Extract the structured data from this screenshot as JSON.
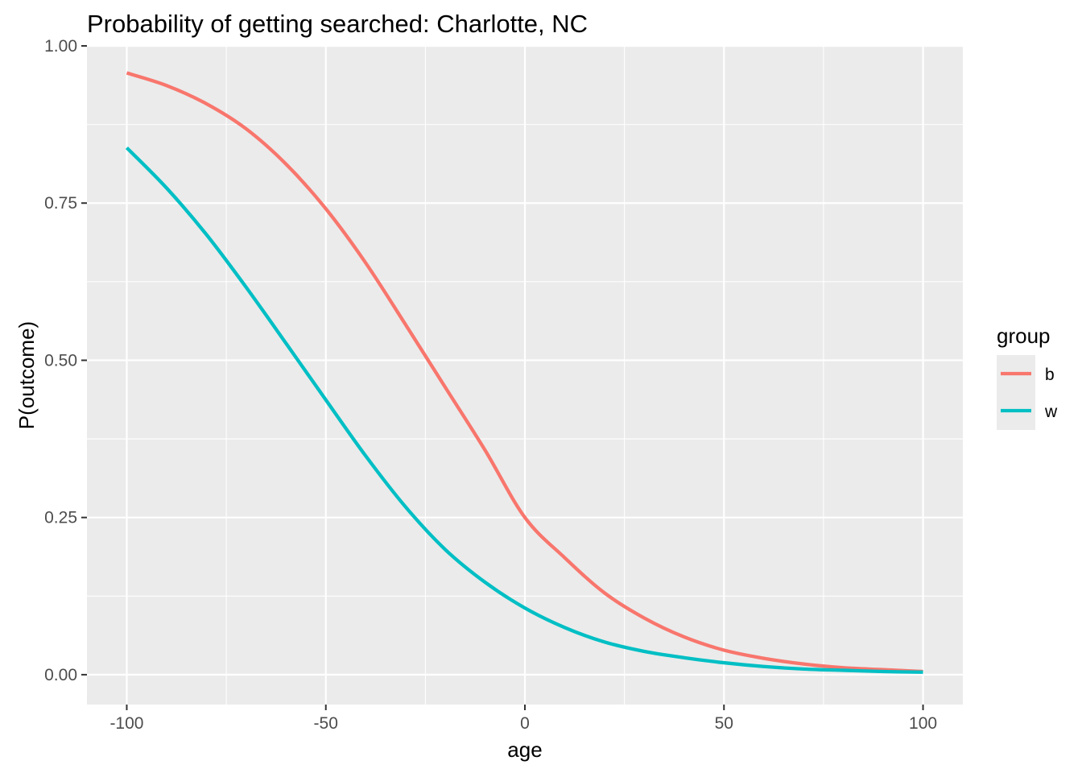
{
  "chart_data": {
    "type": "line",
    "title": "Probability of getting searched: Charlotte, NC",
    "xlabel": "age",
    "ylabel": "P(outcome)",
    "xlim": [
      -110,
      110
    ],
    "ylim": [
      -0.0475,
      1.0
    ],
    "x_ticks": [
      -100,
      -50,
      0,
      50,
      100
    ],
    "x_tick_labels": [
      "-100",
      "-50",
      "0",
      "50",
      "100"
    ],
    "y_ticks": [
      0,
      0.25,
      0.5,
      0.75,
      1.0
    ],
    "y_tick_labels": [
      "0.00",
      "0.25",
      "0.50",
      "0.75",
      "1.00"
    ],
    "grid": true,
    "legend": {
      "title": "group",
      "placement": "right"
    },
    "x": [
      -100,
      -90,
      -80,
      -70,
      -60,
      -50,
      -40,
      -30,
      -20,
      -10,
      0,
      10,
      20,
      30,
      40,
      50,
      60,
      70,
      80,
      90,
      100
    ],
    "series": [
      {
        "name": "b",
        "color": "#F8766D",
        "values": [
          0.957,
          0.937,
          0.908,
          0.868,
          0.812,
          0.741,
          0.655,
          0.557,
          0.457,
          0.357,
          0.25,
          0.186,
          0.13,
          0.09,
          0.06,
          0.039,
          0.026,
          0.017,
          0.011,
          0.008,
          0.005
        ]
      },
      {
        "name": "w",
        "color": "#00BFC4",
        "values": [
          0.838,
          0.774,
          0.7,
          0.616,
          0.527,
          0.437,
          0.348,
          0.267,
          0.199,
          0.147,
          0.106,
          0.075,
          0.052,
          0.037,
          0.027,
          0.019,
          0.013,
          0.009,
          0.007,
          0.005,
          0.004
        ]
      }
    ]
  }
}
